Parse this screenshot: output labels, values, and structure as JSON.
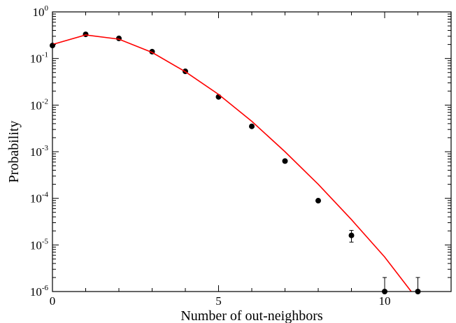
{
  "chart_data": {
    "type": "scatter",
    "title": "",
    "xlabel": "Number of out-neighbors",
    "ylabel": "Probability",
    "xlim": [
      0,
      12
    ],
    "ylim": [
      1e-06,
      1
    ],
    "yscale": "log",
    "grid": false,
    "x_ticks": [
      {
        "value": 0,
        "label": "0"
      },
      {
        "value": 5,
        "label": "5"
      },
      {
        "value": 10,
        "label": "10"
      }
    ],
    "y_ticks": [
      {
        "exp": 0,
        "base": "10",
        "sup": "0"
      },
      {
        "exp": -1,
        "base": "10",
        "sup": "-1"
      },
      {
        "exp": -2,
        "base": "10",
        "sup": "-2"
      },
      {
        "exp": -3,
        "base": "10",
        "sup": "-3"
      },
      {
        "exp": -4,
        "base": "10",
        "sup": "-4"
      },
      {
        "exp": -5,
        "base": "10",
        "sup": "-5"
      },
      {
        "exp": -6,
        "base": "10",
        "sup": "-6"
      }
    ],
    "series": [
      {
        "kind": "points",
        "color": "#000000",
        "points": [
          {
            "x": 0,
            "y": 0.19
          },
          {
            "x": 1,
            "y": 0.33
          },
          {
            "x": 2,
            "y": 0.27
          },
          {
            "x": 3,
            "y": 0.14
          },
          {
            "x": 4,
            "y": 0.053
          },
          {
            "x": 5,
            "y": 0.015
          },
          {
            "x": 6,
            "y": 0.0035
          },
          {
            "x": 7,
            "y": 0.00063
          },
          {
            "x": 8,
            "y": 8.9e-05
          },
          {
            "x": 9,
            "y": 1.6e-05,
            "err_low": 1.15e-05,
            "err_high": 2.05e-05
          },
          {
            "x": 10,
            "y": 1e-06,
            "err_low": 1e-06,
            "err_high": 2e-06
          },
          {
            "x": 11,
            "y": 1e-06,
            "err_low": 1e-06,
            "err_high": 2e-06
          }
        ]
      },
      {
        "kind": "line",
        "color": "#ff0000",
        "points": [
          {
            "x": 0,
            "y": 0.2
          },
          {
            "x": 1,
            "y": 0.32
          },
          {
            "x": 2,
            "y": 0.26
          },
          {
            "x": 3,
            "y": 0.135
          },
          {
            "x": 4,
            "y": 0.052
          },
          {
            "x": 5,
            "y": 0.017
          },
          {
            "x": 6,
            "y": 0.0045
          },
          {
            "x": 7,
            "y": 0.001
          },
          {
            "x": 8,
            "y": 0.0002
          },
          {
            "x": 9,
            "y": 3.5e-05
          },
          {
            "x": 10,
            "y": 5.5e-06
          },
          {
            "x": 10.8,
            "y": 1e-06
          }
        ]
      }
    ]
  }
}
